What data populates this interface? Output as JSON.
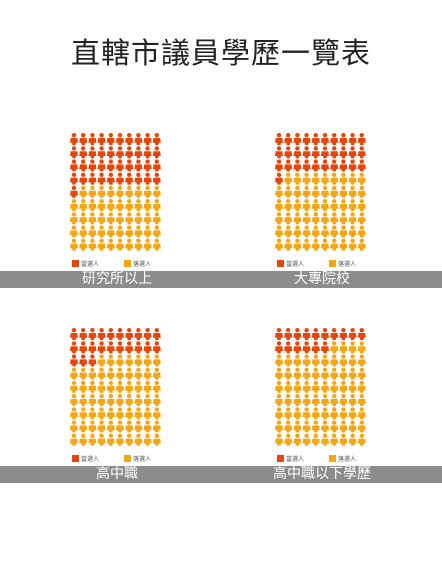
{
  "page": {
    "title": "直轄市議員學歷一覽表",
    "band_color": "#8c8c8c"
  },
  "chart_data": [
    {
      "type": "pictogram",
      "title": "研究所以上",
      "total": 90,
      "series": [
        {
          "name": "當選人",
          "value": 41,
          "color": "#e8450a"
        },
        {
          "name": "落選人",
          "value": 49,
          "color": "#f5a614"
        }
      ]
    },
    {
      "type": "pictogram",
      "title": "大專院校",
      "total": 90,
      "series": [
        {
          "name": "當選人",
          "value": 31,
          "color": "#e8450a"
        },
        {
          "name": "落選人",
          "value": 59,
          "color": "#f5a614"
        }
      ]
    },
    {
      "type": "pictogram",
      "title": "高中職",
      "total": 90,
      "series": [
        {
          "name": "當選人",
          "value": 23,
          "color": "#e8450a"
        },
        {
          "name": "落選人",
          "value": 67,
          "color": "#f5a614"
        }
      ]
    },
    {
      "type": "pictogram",
      "title": "高中職以下學歷",
      "total": 90,
      "series": [
        {
          "name": "當選人",
          "value": 16,
          "color": "#e8450a"
        },
        {
          "name": "落選人",
          "value": 74,
          "color": "#f5a614"
        }
      ]
    }
  ]
}
